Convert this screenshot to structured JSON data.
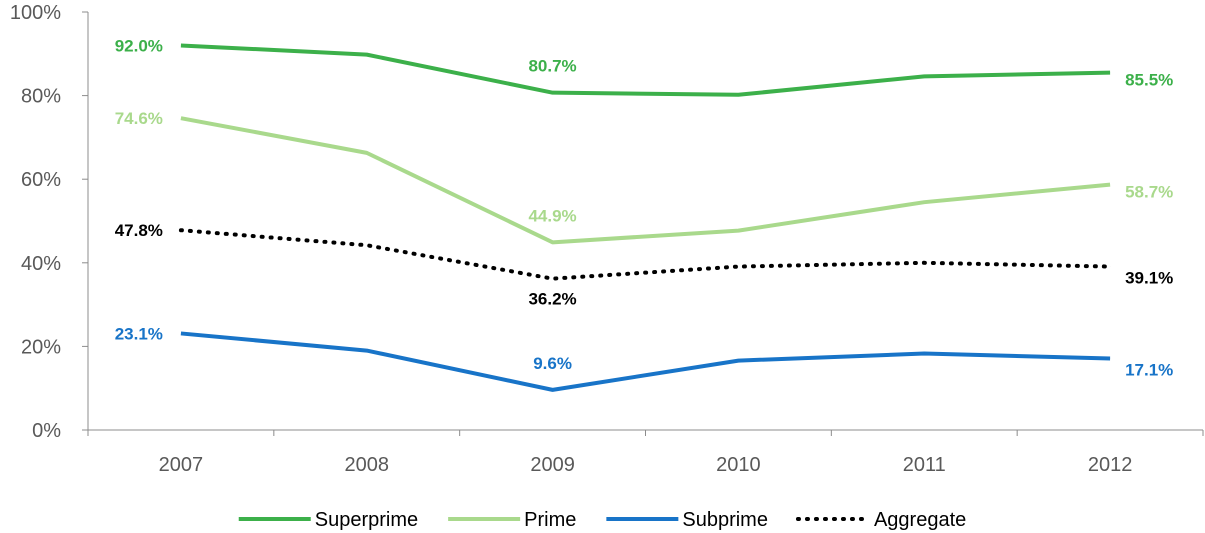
{
  "chart_data": {
    "type": "line",
    "categories": [
      "2007",
      "2008",
      "2009",
      "2010",
      "2011",
      "2012"
    ],
    "ylim": [
      0,
      100
    ],
    "y_ticks": [
      0,
      20,
      40,
      60,
      80,
      100
    ],
    "y_tick_labels": [
      "0%",
      "20%",
      "40%",
      "60%",
      "80%",
      "100%"
    ],
    "grid": false,
    "legend_position": "bottom",
    "series": [
      {
        "name": "Superprime",
        "color": "#3CB04A",
        "style": "solid",
        "values": [
          92.0,
          89.8,
          80.7,
          80.2,
          84.6,
          85.5
        ],
        "labels": [
          {
            "index": 0,
            "text": "92.0%",
            "pos": "left"
          },
          {
            "index": 2,
            "text": "80.7%",
            "pos": "above"
          },
          {
            "index": 5,
            "text": "85.5%",
            "pos": "right"
          }
        ]
      },
      {
        "name": "Prime",
        "color": "#A9D98C",
        "style": "solid",
        "values": [
          74.6,
          66.3,
          44.9,
          47.7,
          54.5,
          58.7
        ],
        "labels": [
          {
            "index": 0,
            "text": "74.6%",
            "pos": "left"
          },
          {
            "index": 2,
            "text": "44.9%",
            "pos": "above"
          },
          {
            "index": 5,
            "text": "58.7%",
            "pos": "right"
          }
        ]
      },
      {
        "name": "Subprime",
        "color": "#1874C8",
        "style": "solid",
        "values": [
          23.1,
          19.0,
          9.6,
          16.6,
          18.3,
          17.1
        ],
        "labels": [
          {
            "index": 0,
            "text": "23.1%",
            "pos": "left"
          },
          {
            "index": 2,
            "text": "9.6%",
            "pos": "above"
          },
          {
            "index": 5,
            "text": "17.1%",
            "pos": "right-below"
          }
        ]
      },
      {
        "name": "Aggregate",
        "color": "#000000",
        "style": "dotted",
        "values": [
          47.8,
          44.2,
          36.2,
          39.1,
          40.0,
          39.1
        ],
        "labels": [
          {
            "index": 0,
            "text": "47.8%",
            "pos": "left"
          },
          {
            "index": 2,
            "text": "36.2%",
            "pos": "below"
          },
          {
            "index": 5,
            "text": "39.1%",
            "pos": "right-below"
          }
        ]
      }
    ]
  }
}
